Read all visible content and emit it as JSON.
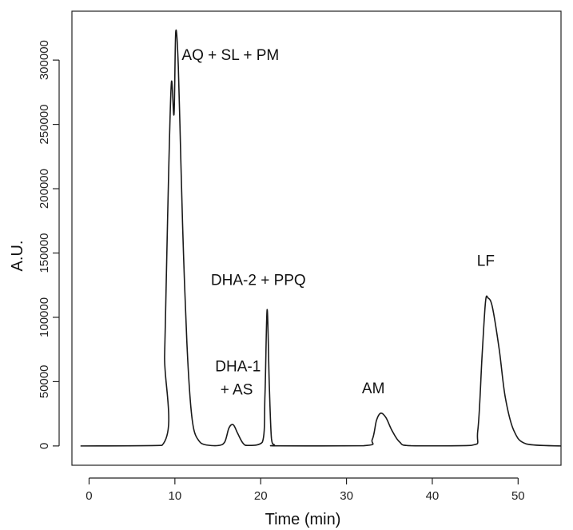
{
  "chart_data": {
    "type": "line",
    "title": "",
    "xlabel": "Time (min)",
    "ylabel": "A.U.",
    "xlim": [
      -2,
      55
    ],
    "ylim": [
      -15000,
      338000
    ],
    "grid": false,
    "legend": "none",
    "x_ticks": [
      0,
      10,
      20,
      30,
      40,
      50
    ],
    "x_tick_labels": [
      "0",
      "10",
      "20",
      "30",
      "40",
      "50"
    ],
    "y_ticks": [
      0,
      50000,
      100000,
      150000,
      200000,
      250000,
      300000
    ],
    "y_tick_labels": [
      "0",
      "50000",
      "100000",
      "150000",
      "200000",
      "250000",
      "300000"
    ],
    "line_color": "#1a1a1a",
    "series": [
      {
        "x": [
          -1,
          8.5,
          8.8,
          9.0,
          9.3,
          9.6,
          9.9,
          10.1,
          10.4,
          10.7,
          11.0,
          11.4,
          11.8,
          12.2,
          12.8,
          13.5,
          15.0,
          15.8,
          16.3,
          16.8,
          17.3,
          17.9,
          18.5,
          20.2,
          20.5,
          20.75,
          21.0,
          21.25,
          21.6,
          22.0,
          32.0,
          33.0,
          33.5,
          34.0,
          34.6,
          35.3,
          36.2,
          37.5,
          44.5,
          45.3,
          45.8,
          46.2,
          46.5,
          47.0,
          47.8,
          48.5,
          49.5,
          51.0,
          55.0
        ],
        "y": [
          0,
          500,
          70000,
          130000,
          220000,
          283000,
          258000,
          322000,
          295000,
          220000,
          150000,
          80000,
          35000,
          13000,
          4000,
          1000,
          300,
          3000,
          14000,
          16500,
          10000,
          2500,
          400,
          3000,
          40000,
          106000,
          48000,
          6000,
          800,
          100,
          200,
          5000,
          20000,
          25500,
          22000,
          12000,
          3000,
          200,
          400,
          12000,
          70000,
          112000,
          115000,
          108000,
          75000,
          38000,
          12000,
          1500,
          0
        ]
      }
    ],
    "annotations": [
      {
        "text": "AQ + SL + PM",
        "x": 10.8,
        "y": 300000
      },
      {
        "text": "DHA-2 + PPQ",
        "x": 14.2,
        "y": 125000
      },
      {
        "text": "DHA-1",
        "x": 14.7,
        "y": 58000
      },
      {
        "text": "+ AS",
        "x": 15.3,
        "y": 40000
      },
      {
        "text": "AM",
        "x": 31.8,
        "y": 41000
      },
      {
        "text": "LF",
        "x": 45.2,
        "y": 140000
      }
    ]
  }
}
